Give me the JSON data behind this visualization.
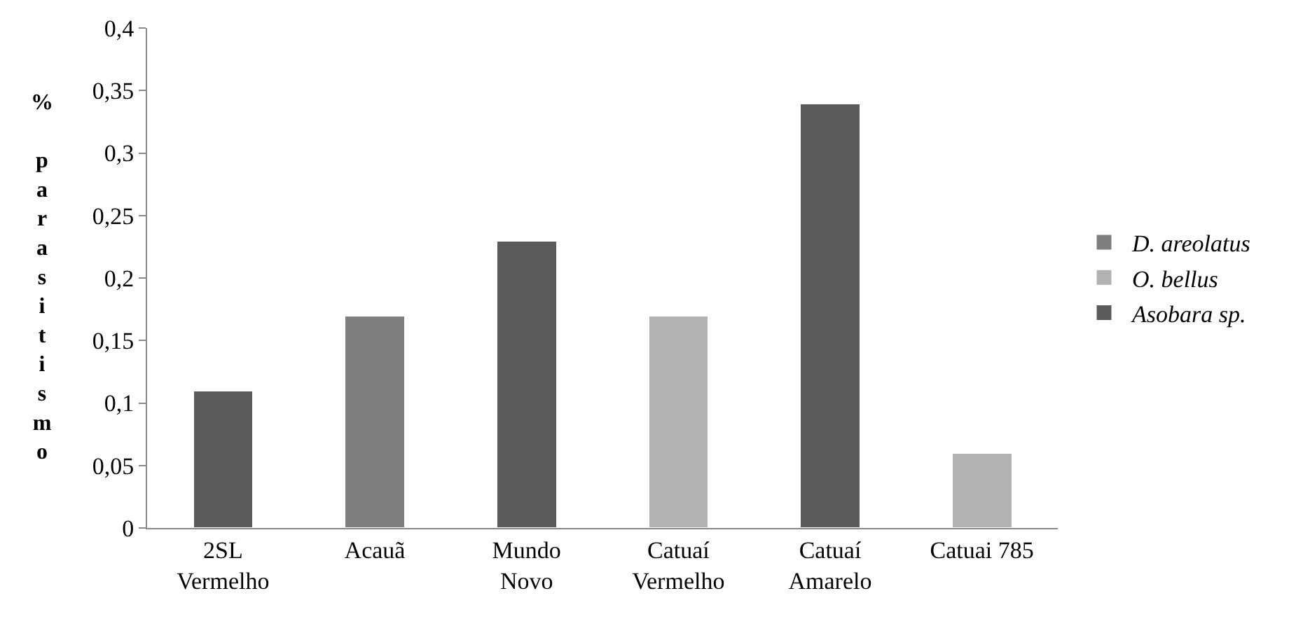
{
  "chart_data": {
    "type": "bar",
    "stacked": true,
    "ylabel": "% parasitismo",
    "categories": [
      "2SL\nVermelho",
      "Acauã",
      "Mundo\nNovo",
      "Catuaí\nVermelho",
      "Catuaí\nAmarelo",
      "Catuai 785"
    ],
    "series": [
      {
        "name": "D. areolatus",
        "color": "#7f7f7f",
        "values": [
          null,
          0.17,
          null,
          null,
          null,
          null
        ]
      },
      {
        "name": "O. bellus",
        "color": "#b2b2b2",
        "values": [
          null,
          null,
          null,
          0.17,
          null,
          0.06
        ]
      },
      {
        "name": "Asobara sp.",
        "color": "#5a5a5a",
        "values": [
          0.11,
          null,
          0.23,
          null,
          0.34,
          null
        ]
      }
    ],
    "ylim": [
      0,
      0.4
    ],
    "yticks": [
      {
        "value": 0,
        "label": "0"
      },
      {
        "value": 0.05,
        "label": "0,05"
      },
      {
        "value": 0.1,
        "label": "0,1"
      },
      {
        "value": 0.15,
        "label": "0,15"
      },
      {
        "value": 0.2,
        "label": "0,2"
      },
      {
        "value": 0.25,
        "label": "0,25"
      },
      {
        "value": 0.3,
        "label": "0,3"
      },
      {
        "value": 0.35,
        "label": "0,35"
      },
      {
        "value": 0.4,
        "label": "0,4"
      }
    ],
    "legend": "right"
  }
}
